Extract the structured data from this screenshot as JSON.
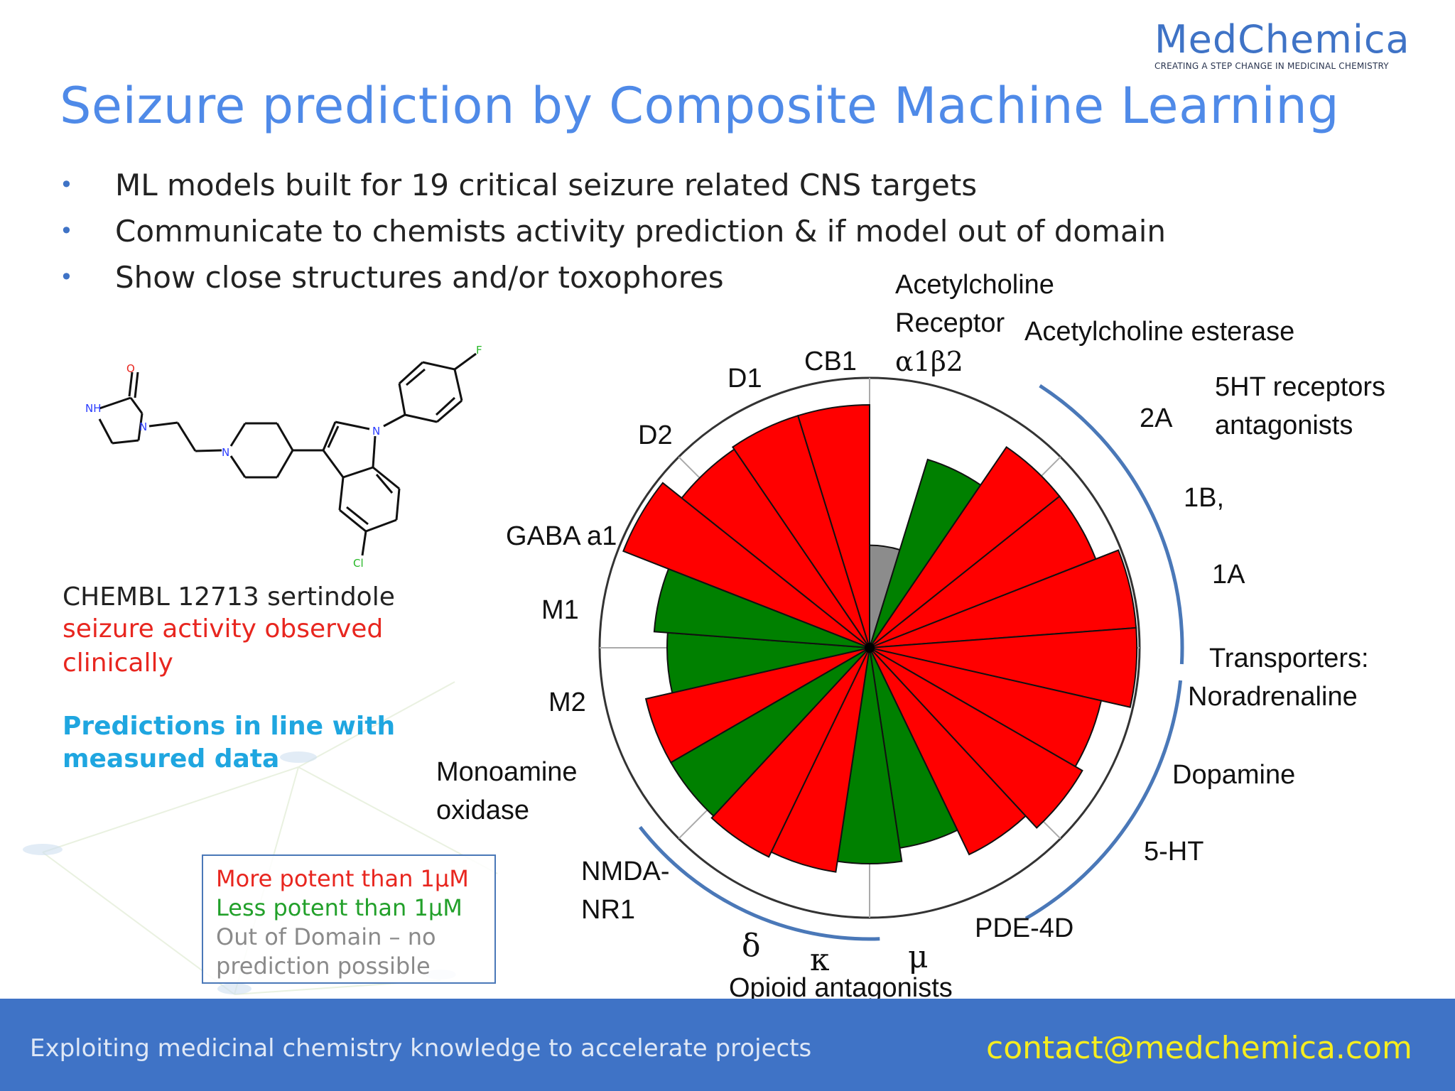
{
  "logo": {
    "name": "MedChemica",
    "tagline": "CREATING A STEP CHANGE IN MEDICINAL CHEMISTRY"
  },
  "title": "Seizure prediction by Composite Machine Learning",
  "bullets": [
    "ML models built for 19 critical seizure related CNS targets",
    "Communicate to chemists activity prediction & if model out of domain",
    "Show close structures and/or toxophores"
  ],
  "compound": {
    "id_label": "CHEMBL 12713 sertindole",
    "observation": "seizure activity observed clinically",
    "prediction_note": "Predictions in line with measured data",
    "atoms": {
      "nh": "NH",
      "o": "O",
      "n1": "N",
      "n2": "N",
      "n3": "N",
      "f": "F",
      "cl": "Cl"
    }
  },
  "legend": {
    "more_potent": "More potent than 1μM",
    "less_potent": "Less potent than 1μM",
    "out_of_domain": "Out of Domain – no prediction possible",
    "colors": {
      "more_potent": "#ff0000",
      "less_potent": "#008000",
      "out_of_domain": "#8c8c8c"
    }
  },
  "chart_data": {
    "type": "polar-bar",
    "rmax": 1.0,
    "sectors": [
      {
        "value": 0.38,
        "class": "out_of_domain"
      },
      {
        "value": 0.73,
        "class": "less_potent"
      },
      {
        "value": 0.9,
        "class": "more_potent"
      },
      {
        "value": 0.9,
        "class": "more_potent"
      },
      {
        "value": 0.99,
        "class": "more_potent"
      },
      {
        "value": 0.99,
        "class": "more_potent"
      },
      {
        "value": 0.88,
        "class": "more_potent"
      },
      {
        "value": 0.91,
        "class": "more_potent"
      },
      {
        "value": 0.85,
        "class": "more_potent"
      },
      {
        "value": 0.75,
        "class": "less_potent"
      },
      {
        "value": 0.8,
        "class": "less_potent"
      },
      {
        "value": 0.84,
        "class": "more_potent"
      },
      {
        "value": 0.86,
        "class": "more_potent"
      },
      {
        "value": 0.85,
        "class": "less_potent"
      },
      {
        "value": 0.85,
        "class": "more_potent"
      },
      {
        "value": 0.75,
        "class": "less_potent"
      },
      {
        "value": 0.8,
        "class": "less_potent"
      },
      {
        "value": 0.98,
        "class": "more_potent"
      },
      {
        "value": 0.89,
        "class": "more_potent"
      },
      {
        "value": 0.9,
        "class": "more_potent"
      },
      {
        "value": 0.9,
        "class": "more_potent"
      }
    ],
    "labels": {
      "ach_receptor": [
        "Acetylcholine",
        "Receptor"
      ],
      "ach_receptor_sub": "α1β2",
      "ach_esterase": "Acetylcholine esterase",
      "ht_group": [
        "5HT  receptors",
        "antagonists"
      ],
      "ht_2a": "2A",
      "ht_1b": "1B,",
      "ht_1a": "1A",
      "transporters": [
        "Transporters:",
        "Noradrenaline"
      ],
      "dopamine": "Dopamine",
      "ht5": "5-HT",
      "pde": "PDE-4D",
      "mu": "μ",
      "kappa": "κ",
      "delta": "δ",
      "opioid": "Opioid antagonists",
      "nmda": [
        "NMDA-",
        "NR1"
      ],
      "mao": [
        "Monoamine",
        "oxidase"
      ],
      "m2": "M2",
      "m1": "M1",
      "gaba": "GABA a1",
      "d2": "D2",
      "d1": "D1",
      "cb1": "CB1"
    }
  },
  "footer": {
    "tagline": "Exploiting medicinal chemistry knowledge to accelerate projects",
    "email": "contact@medchemica.com"
  }
}
